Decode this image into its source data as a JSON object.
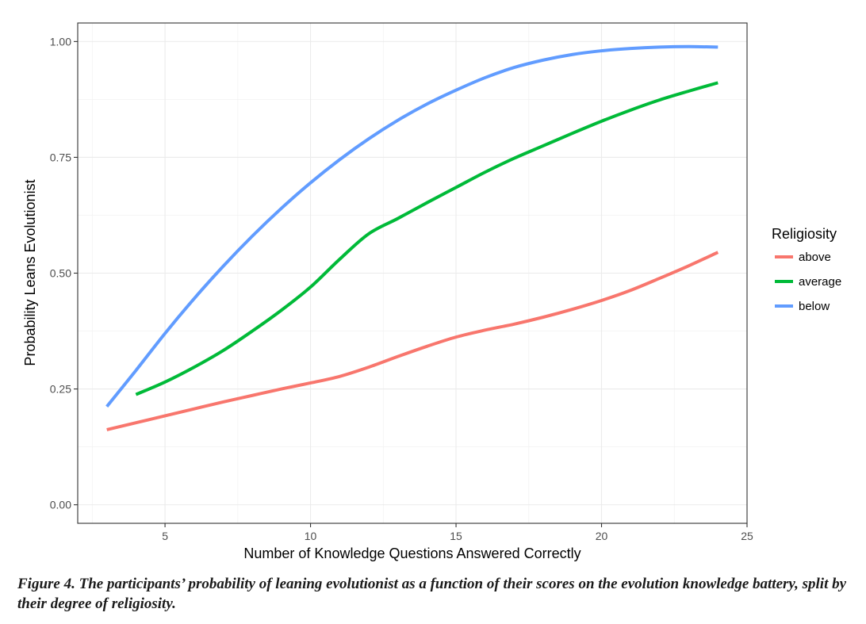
{
  "chart_data": {
    "type": "line",
    "xlabel": "Number of Knowledge Questions Answered Correctly",
    "ylabel": "Probability Leans Evolutionist",
    "xlim": [
      2,
      25
    ],
    "ylim": [
      -0.04,
      1.04
    ],
    "x_ticks": [
      5,
      10,
      15,
      20,
      25
    ],
    "x_tick_labels": [
      "5",
      "10",
      "15",
      "20",
      "25"
    ],
    "y_ticks": [
      0,
      0.25,
      0.5,
      0.75,
      1
    ],
    "y_tick_labels": [
      "0.00",
      "0.25",
      "0.50",
      "0.75",
      "1.00"
    ],
    "grid": true,
    "legend_title": "Religiosity",
    "legend_position": "right",
    "series": [
      {
        "name": "above",
        "color": "#F8766D",
        "x": [
          3,
          4,
          5,
          6,
          7,
          8,
          9,
          10,
          11,
          12,
          13,
          14,
          15,
          16,
          17,
          18,
          19,
          20,
          21,
          22,
          23,
          24
        ],
        "y": [
          0.162,
          0.177,
          0.192,
          0.207,
          0.222,
          0.236,
          0.25,
          0.263,
          0.277,
          0.297,
          0.32,
          0.342,
          0.362,
          0.377,
          0.39,
          0.405,
          0.422,
          0.441,
          0.463,
          0.489,
          0.516,
          0.545
        ]
      },
      {
        "name": "average",
        "color": "#00BA38",
        "x": [
          4,
          5,
          6,
          7,
          8,
          9,
          10,
          11,
          12,
          13,
          14,
          15,
          16,
          17,
          18,
          19,
          20,
          21,
          22,
          23,
          24
        ],
        "y": [
          0.238,
          0.265,
          0.297,
          0.333,
          0.375,
          0.42,
          0.47,
          0.53,
          0.585,
          0.618,
          0.652,
          0.685,
          0.718,
          0.748,
          0.775,
          0.802,
          0.828,
          0.852,
          0.874,
          0.893,
          0.911
        ]
      },
      {
        "name": "below",
        "color": "#619CFF",
        "x": [
          3,
          4,
          5,
          6,
          7,
          8,
          9,
          10,
          11,
          12,
          13,
          14,
          15,
          16,
          17,
          18,
          19,
          20,
          21,
          22,
          23,
          24
        ],
        "y": [
          0.212,
          0.29,
          0.37,
          0.445,
          0.515,
          0.58,
          0.64,
          0.695,
          0.745,
          0.79,
          0.83,
          0.865,
          0.895,
          0.922,
          0.944,
          0.96,
          0.972,
          0.98,
          0.985,
          0.988,
          0.989,
          0.988
        ]
      }
    ]
  },
  "caption": "Figure 4. The participants’ probability of leaning evolutionist as a function of their scores on the evolution knowledge battery, split by their degree of religiosity."
}
